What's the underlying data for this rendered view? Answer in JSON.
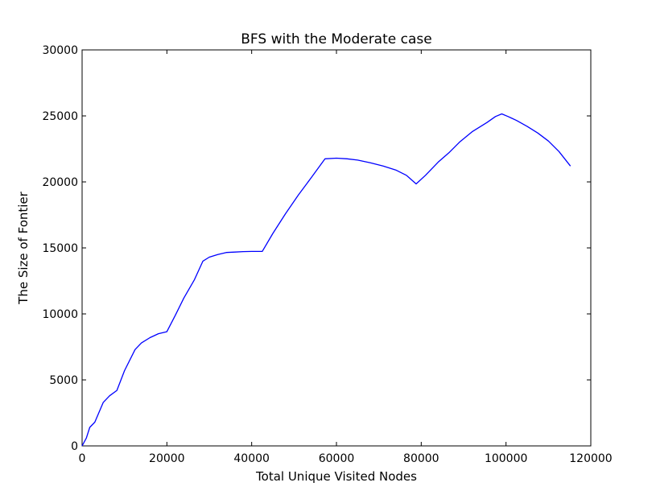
{
  "chart_data": {
    "type": "line",
    "title": "BFS with the Moderate case",
    "xlabel": "Total Unique Visited Nodes",
    "ylabel": "The Size of Fontier",
    "xlim": [
      0,
      120000
    ],
    "ylim": [
      0,
      30000
    ],
    "x_ticks": [
      0,
      20000,
      40000,
      60000,
      80000,
      100000,
      120000
    ],
    "x_tick_labels": [
      "0",
      "20000",
      "40000",
      "60000",
      "80000",
      "100000",
      "120000"
    ],
    "y_ticks": [
      0,
      5000,
      10000,
      15000,
      20000,
      25000,
      30000
    ],
    "y_tick_labels": [
      "0",
      "5000",
      "10000",
      "15000",
      "20000",
      "25000",
      "30000"
    ],
    "grid": false,
    "series": [
      {
        "color": "#0000ff",
        "x": [
          0,
          1000,
          1800,
          3000,
          5000,
          6500,
          8200,
          10000,
          12500,
          14000,
          16000,
          18000,
          20000,
          22000,
          24000,
          26500,
          28500,
          30000,
          32000,
          34000,
          36000,
          38000,
          40000,
          42500,
          45000,
          48000,
          51000,
          54000,
          57300,
          60000,
          62500,
          65000,
          68000,
          71000,
          74000,
          76500,
          78800,
          81000,
          84000,
          86500,
          89000,
          92000,
          95500,
          97500,
          99000,
          100500,
          102500,
          105000,
          107500,
          110000,
          112500,
          115200
        ],
        "y": [
          0,
          600,
          1400,
          1800,
          3300,
          3800,
          4200,
          5700,
          7300,
          7800,
          8200,
          8500,
          8650,
          9900,
          11200,
          12600,
          14000,
          14300,
          14500,
          14650,
          14680,
          14720,
          14730,
          14730,
          16100,
          17600,
          19000,
          20300,
          21750,
          21800,
          21750,
          21650,
          21450,
          21200,
          20900,
          20500,
          19850,
          20500,
          21500,
          22200,
          23000,
          23800,
          24500,
          24950,
          25150,
          24950,
          24650,
          24200,
          23700,
          23100,
          22300,
          21200
        ]
      }
    ]
  }
}
